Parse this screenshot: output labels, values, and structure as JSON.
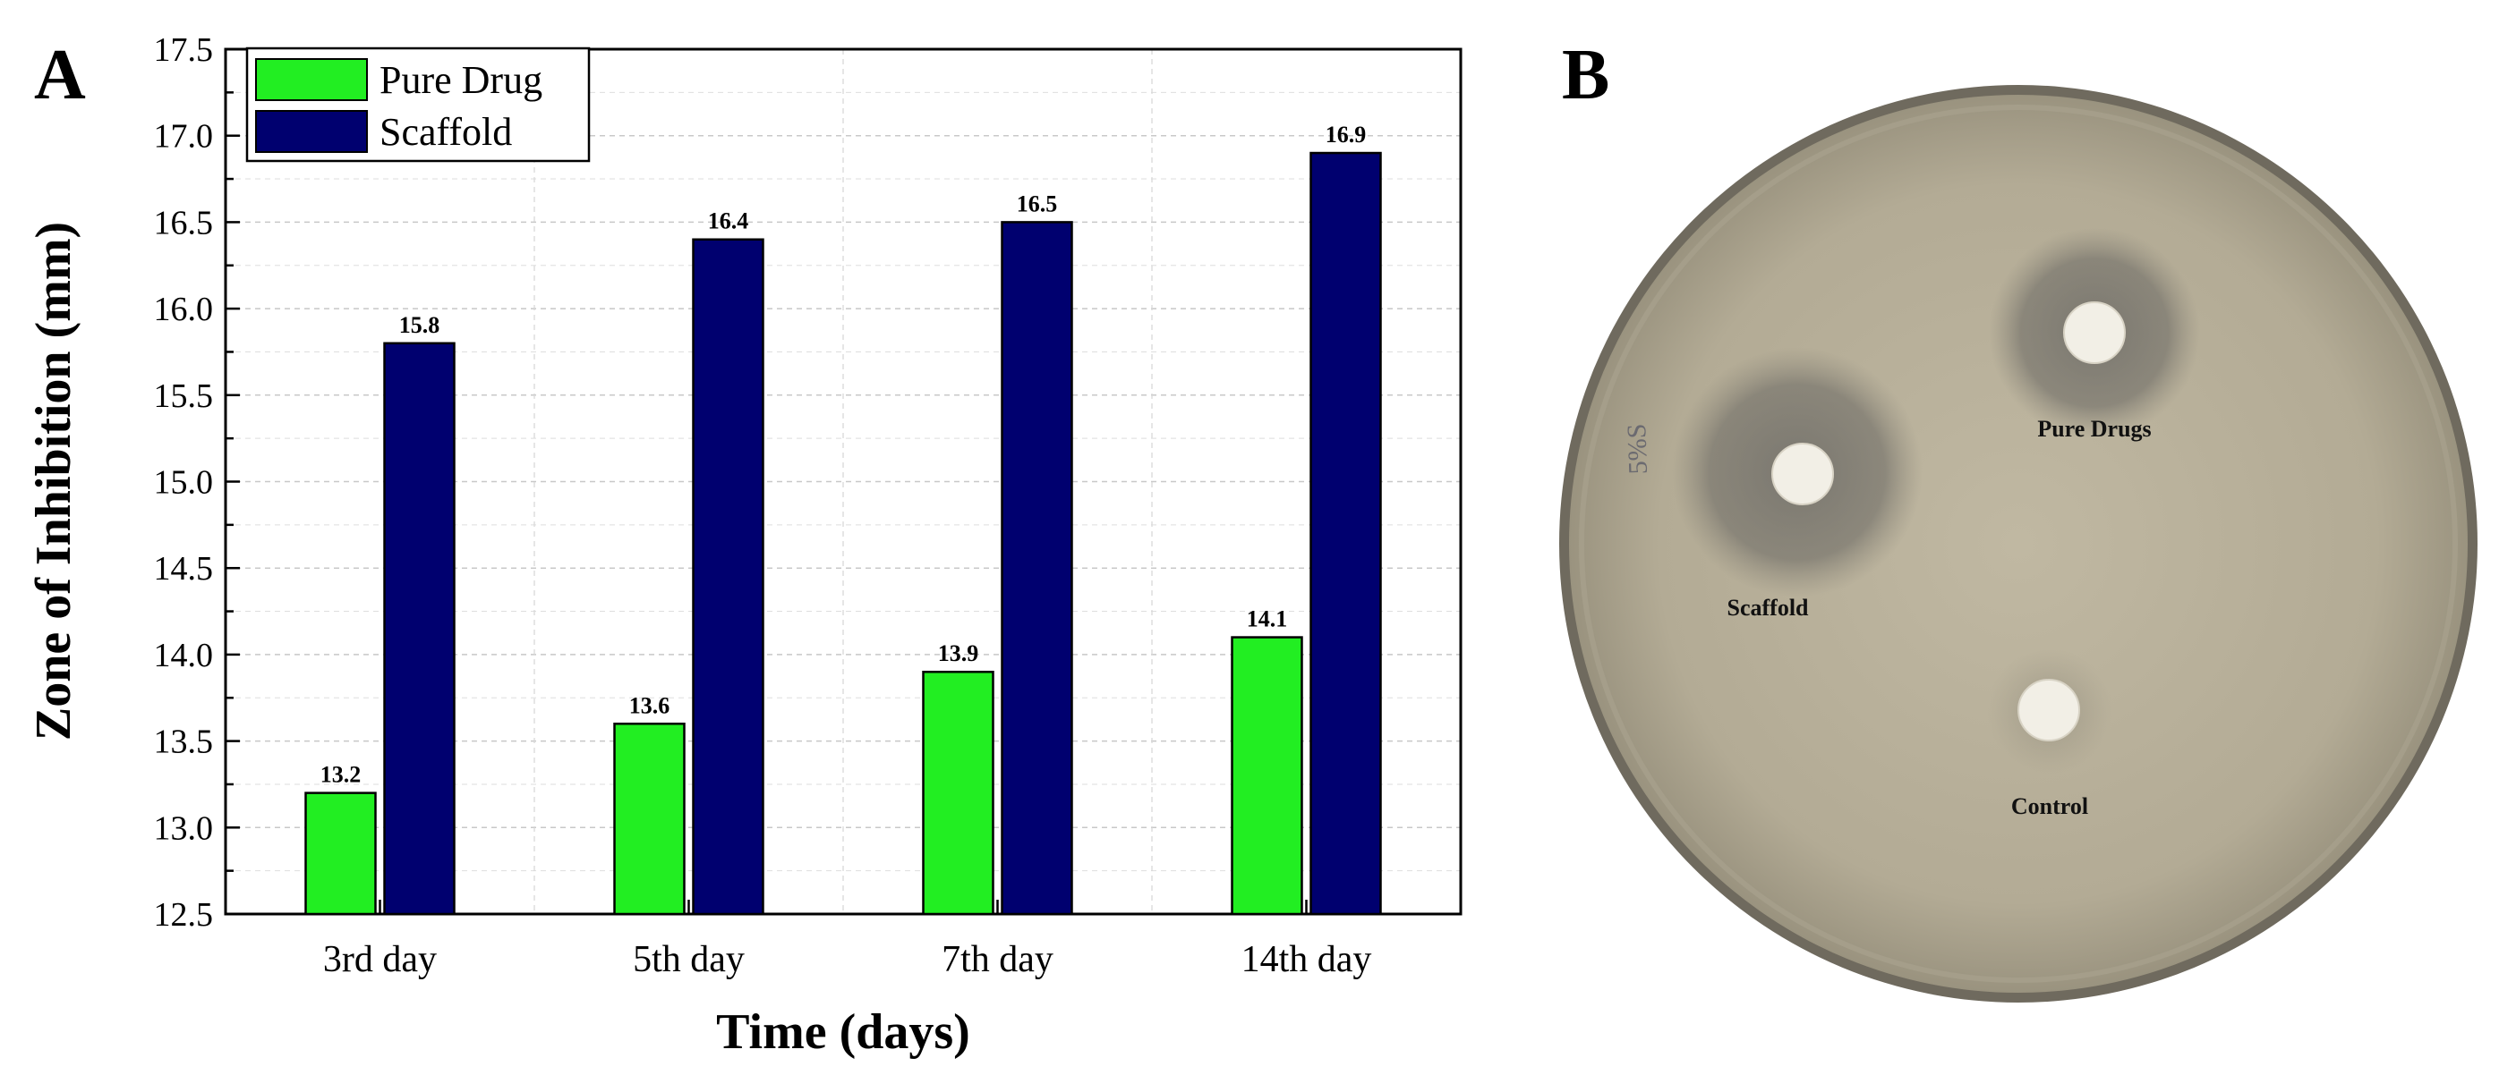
{
  "panel_a": {
    "letter": "A"
  },
  "panel_b": {
    "letter": "B",
    "plate_labels": {
      "scaffold": "Scaffold",
      "pure_drugs": "Pure Drugs",
      "control": "Control"
    },
    "handwriting": "5%S"
  },
  "colors": {
    "pure_drug": "#22ee22",
    "scaffold": "#00006f",
    "plate_agar": "#b8b09a",
    "plate_rim": "#8a8476"
  },
  "chart_data": {
    "type": "bar",
    "title": "",
    "categories": [
      "3rd day",
      "5th day",
      "7th day",
      "14th day"
    ],
    "series": [
      {
        "name": "Pure Drug",
        "values": [
          13.2,
          13.6,
          13.9,
          14.1
        ],
        "labels": [
          "13.2",
          "13.6",
          "13.9",
          "14.1"
        ]
      },
      {
        "name": "Scaffold",
        "values": [
          15.8,
          16.4,
          16.5,
          16.9
        ],
        "labels": [
          "15.8",
          "16.4",
          "16.5",
          "16.9"
        ]
      }
    ],
    "xlabel": "Time (days)",
    "ylabel": "Zone of Inhibition (mm)",
    "ylim": [
      12.5,
      17.5
    ],
    "yticks": [
      "12.5",
      "13.0",
      "13.5",
      "14.0",
      "14.5",
      "15.0",
      "15.5",
      "16.0",
      "16.5",
      "17.0",
      "17.5"
    ],
    "grid": true,
    "legend_position": "top-left"
  }
}
